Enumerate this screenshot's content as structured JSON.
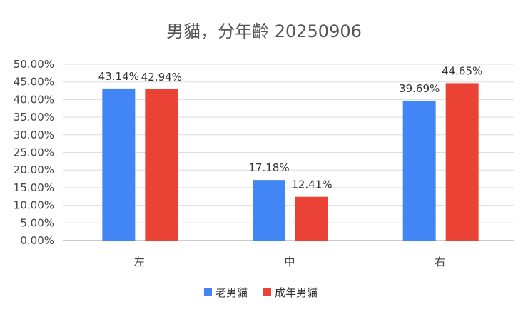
{
  "chart_data": {
    "type": "bar",
    "title": "男貓，分年齡 20250906",
    "categories": [
      "左",
      "中",
      "右"
    ],
    "series": [
      {
        "name": "老男貓",
        "color": "#4285F4",
        "values": [
          43.14,
          17.18,
          39.69
        ]
      },
      {
        "name": "成年男貓",
        "color": "#EA4335",
        "values": [
          42.94,
          12.41,
          44.65
        ]
      }
    ],
    "data_labels": [
      [
        "43.14%",
        "17.18%",
        "39.69%"
      ],
      [
        "42.94%",
        "12.41%",
        "44.65%"
      ]
    ],
    "yticks": [
      "0.00%",
      "5.00%",
      "10.00%",
      "15.00%",
      "20.00%",
      "25.00%",
      "30.00%",
      "35.00%",
      "40.00%",
      "45.00%",
      "50.00%"
    ],
    "ylim": [
      0,
      50
    ],
    "grid": true,
    "legend": "bottom",
    "xlabel": "",
    "ylabel": ""
  }
}
